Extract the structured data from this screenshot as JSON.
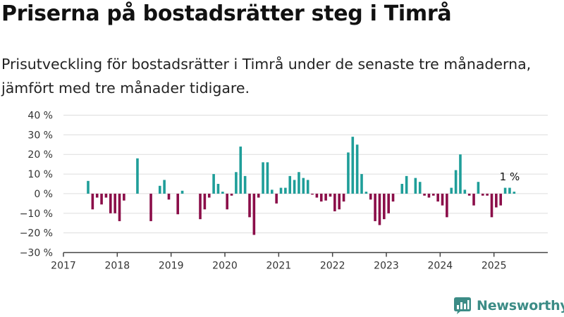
{
  "title": "Priserna på bostadsrätter steg i Timrå",
  "subtitle": "Prisutveckling för bostadsrätter i Timrå under de senaste tre månaderna, jämfört med tre månader tidigare.",
  "brand": "Newsworthy",
  "colors": {
    "positive": "#1f9e99",
    "negative": "#8b0e49",
    "brand": "#3c8c86",
    "grid": "#dddddd",
    "axis": "#444444"
  },
  "chart_data": {
    "type": "bar",
    "title": "Priserna på bostadsrätter steg i Timrå",
    "subtitle": "Prisutveckling för bostadsrätter i Timrå under de senaste tre månaderna, jämfört med tre månader tidigare.",
    "xlabel": "",
    "ylabel": "",
    "ylim": [
      -30,
      40
    ],
    "xlim": [
      "2017-01",
      "2025-12"
    ],
    "y_ticks": [
      40,
      30,
      20,
      10,
      0,
      -10,
      -20,
      -30
    ],
    "y_tick_labels": [
      "40 %",
      "30 %",
      "20 %",
      "10 %",
      "0 %",
      "−10 %",
      "−20 %",
      "−30 %"
    ],
    "x_tick_labels": [
      "2017",
      "2018",
      "2019",
      "2020",
      "2021",
      "2022",
      "2023",
      "2024",
      "2025"
    ],
    "grid": true,
    "annotation": {
      "label": "1 %",
      "month": "2025-04"
    },
    "series": [
      {
        "values": [
          {
            "month": "2017-06",
            "value": 6.5
          },
          {
            "month": "2017-07",
            "value": -8
          },
          {
            "month": "2017-08",
            "value": -2
          },
          {
            "month": "2017-09",
            "value": -5.5
          },
          {
            "month": "2017-10",
            "value": -2
          },
          {
            "month": "2017-11",
            "value": -10
          },
          {
            "month": "2017-12",
            "value": -10
          },
          {
            "month": "2018-01",
            "value": -14
          },
          {
            "month": "2018-02",
            "value": -3.5
          },
          {
            "month": "2018-05",
            "value": 18
          },
          {
            "month": "2018-08",
            "value": -14
          },
          {
            "month": "2018-10",
            "value": 4
          },
          {
            "month": "2018-11",
            "value": 7
          },
          {
            "month": "2018-12",
            "value": -3
          },
          {
            "month": "2019-02",
            "value": -10.5
          },
          {
            "month": "2019-03",
            "value": 1.5
          },
          {
            "month": "2019-07",
            "value": -13
          },
          {
            "month": "2019-08",
            "value": -8
          },
          {
            "month": "2019-09",
            "value": -2
          },
          {
            "month": "2019-10",
            "value": 10
          },
          {
            "month": "2019-11",
            "value": 5
          },
          {
            "month": "2019-12",
            "value": 1
          },
          {
            "month": "2020-01",
            "value": -8
          },
          {
            "month": "2020-02",
            "value": -1
          },
          {
            "month": "2020-03",
            "value": 11
          },
          {
            "month": "2020-04",
            "value": 24
          },
          {
            "month": "2020-05",
            "value": 9
          },
          {
            "month": "2020-06",
            "value": -12
          },
          {
            "month": "2020-07",
            "value": -21
          },
          {
            "month": "2020-08",
            "value": -2
          },
          {
            "month": "2020-09",
            "value": 16
          },
          {
            "month": "2020-10",
            "value": 16
          },
          {
            "month": "2020-11",
            "value": 2
          },
          {
            "month": "2020-12",
            "value": -5
          },
          {
            "month": "2021-01",
            "value": 3
          },
          {
            "month": "2021-02",
            "value": 3
          },
          {
            "month": "2021-03",
            "value": 9
          },
          {
            "month": "2021-04",
            "value": 7
          },
          {
            "month": "2021-05",
            "value": 11
          },
          {
            "month": "2021-06",
            "value": 8
          },
          {
            "month": "2021-07",
            "value": 7
          },
          {
            "month": "2021-08",
            "value": -0.5
          },
          {
            "month": "2021-09",
            "value": -2
          },
          {
            "month": "2021-10",
            "value": -4
          },
          {
            "month": "2021-11",
            "value": -3.5
          },
          {
            "month": "2021-12",
            "value": -1.5
          },
          {
            "month": "2022-01",
            "value": -9
          },
          {
            "month": "2022-02",
            "value": -8
          },
          {
            "month": "2022-03",
            "value": -4
          },
          {
            "month": "2022-04",
            "value": 21
          },
          {
            "month": "2022-05",
            "value": 29
          },
          {
            "month": "2022-06",
            "value": 25
          },
          {
            "month": "2022-07",
            "value": 10
          },
          {
            "month": "2022-08",
            "value": 1
          },
          {
            "month": "2022-09",
            "value": -3
          },
          {
            "month": "2022-10",
            "value": -14
          },
          {
            "month": "2022-11",
            "value": -16
          },
          {
            "month": "2022-12",
            "value": -13
          },
          {
            "month": "2023-01",
            "value": -10
          },
          {
            "month": "2023-02",
            "value": -4
          },
          {
            "month": "2023-04",
            "value": 5
          },
          {
            "month": "2023-05",
            "value": 9
          },
          {
            "month": "2023-07",
            "value": 8
          },
          {
            "month": "2023-08",
            "value": 6
          },
          {
            "month": "2023-09",
            "value": -1
          },
          {
            "month": "2023-10",
            "value": -2
          },
          {
            "month": "2023-11",
            "value": -1
          },
          {
            "month": "2023-12",
            "value": -4
          },
          {
            "month": "2024-01",
            "value": -6
          },
          {
            "month": "2024-02",
            "value": -12
          },
          {
            "month": "2024-03",
            "value": 3
          },
          {
            "month": "2024-04",
            "value": 12
          },
          {
            "month": "2024-05",
            "value": 20
          },
          {
            "month": "2024-06",
            "value": 2
          },
          {
            "month": "2024-07",
            "value": -1
          },
          {
            "month": "2024-08",
            "value": -6
          },
          {
            "month": "2024-09",
            "value": 6
          },
          {
            "month": "2024-10",
            "value": -1
          },
          {
            "month": "2024-11",
            "value": -1
          },
          {
            "month": "2024-12",
            "value": -12
          },
          {
            "month": "2025-01",
            "value": -7
          },
          {
            "month": "2025-02",
            "value": -6
          },
          {
            "month": "2025-03",
            "value": 3
          },
          {
            "month": "2025-04",
            "value": 3
          },
          {
            "month": "2025-05",
            "value": 1
          }
        ]
      }
    ]
  }
}
